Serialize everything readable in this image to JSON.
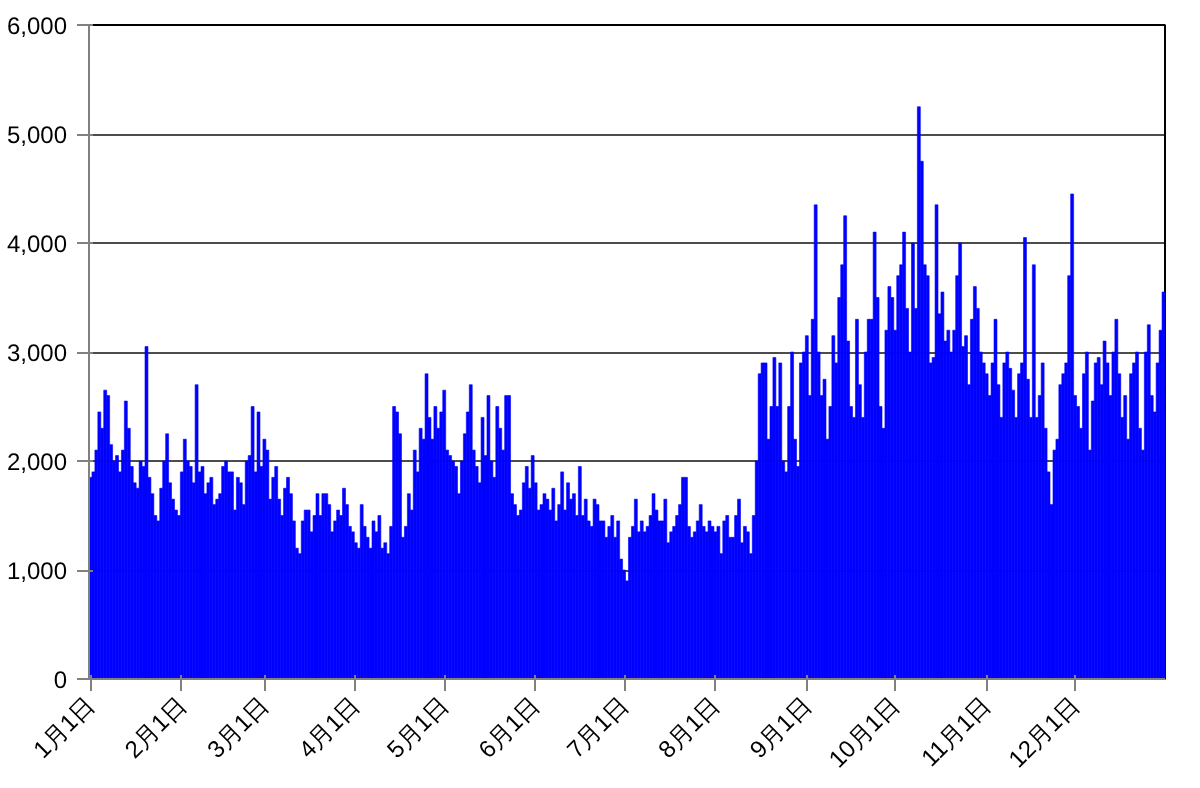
{
  "chart_data": {
    "type": "bar",
    "color": "#0000ff",
    "categories": [
      "1月1日",
      null,
      null,
      null,
      null,
      null,
      null,
      null,
      null,
      null,
      null,
      null,
      null,
      null,
      null,
      null,
      null,
      null,
      null,
      null,
      null,
      null,
      null,
      null,
      null,
      null,
      null,
      null,
      null,
      null,
      null,
      "2月1日",
      null,
      null,
      null,
      null,
      null,
      null,
      null,
      null,
      null,
      null,
      null,
      null,
      null,
      null,
      null,
      null,
      null,
      null,
      null,
      null,
      null,
      null,
      null,
      null,
      null,
      null,
      null,
      "3月1日",
      null,
      null,
      null,
      null,
      null,
      null,
      null,
      null,
      null,
      null,
      null,
      null,
      null,
      null,
      null,
      null,
      null,
      null,
      null,
      null,
      null,
      null,
      null,
      null,
      null,
      null,
      null,
      null,
      null,
      null,
      "4月1日",
      null,
      null,
      null,
      null,
      null,
      null,
      null,
      null,
      null,
      null,
      null,
      null,
      null,
      null,
      null,
      null,
      null,
      null,
      null,
      null,
      null,
      null,
      null,
      null,
      null,
      null,
      null,
      null,
      null,
      "5月1日",
      null,
      null,
      null,
      null,
      null,
      null,
      null,
      null,
      null,
      null,
      null,
      null,
      null,
      null,
      null,
      null,
      null,
      null,
      null,
      null,
      null,
      null,
      null,
      null,
      null,
      null,
      null,
      null,
      null,
      null,
      "6月1日",
      null,
      null,
      null,
      null,
      null,
      null,
      null,
      null,
      null,
      null,
      null,
      null,
      null,
      null,
      null,
      null,
      null,
      null,
      null,
      null,
      null,
      null,
      null,
      null,
      null,
      null,
      null,
      null,
      null,
      "7月1日",
      null,
      null,
      null,
      null,
      null,
      null,
      null,
      null,
      null,
      null,
      null,
      null,
      null,
      null,
      null,
      null,
      null,
      null,
      null,
      null,
      null,
      null,
      null,
      null,
      null,
      null,
      null,
      null,
      null,
      null,
      "8月1日",
      null,
      null,
      null,
      null,
      null,
      null,
      null,
      null,
      null,
      null,
      null,
      null,
      null,
      null,
      null,
      null,
      null,
      null,
      null,
      null,
      null,
      null,
      null,
      null,
      null,
      null,
      null,
      null,
      null,
      null,
      "9月1日",
      null,
      null,
      null,
      null,
      null,
      null,
      null,
      null,
      null,
      null,
      null,
      null,
      null,
      null,
      null,
      null,
      null,
      null,
      null,
      null,
      null,
      null,
      null,
      null,
      null,
      null,
      null,
      null,
      null,
      "10月1日",
      null,
      null,
      null,
      null,
      null,
      null,
      null,
      null,
      null,
      null,
      null,
      null,
      null,
      null,
      null,
      null,
      null,
      null,
      null,
      null,
      null,
      null,
      null,
      null,
      null,
      null,
      null,
      null,
      null,
      null,
      "11月1日",
      null,
      null,
      null,
      null,
      null,
      null,
      null,
      null,
      null,
      null,
      null,
      null,
      null,
      null,
      null,
      null,
      null,
      null,
      null,
      null,
      null,
      null,
      null,
      null,
      null,
      null,
      null,
      null,
      null,
      "12月1日",
      null,
      null,
      null,
      null,
      null,
      null,
      null,
      null,
      null,
      null,
      null,
      null,
      null,
      null,
      null,
      null,
      null,
      null,
      null,
      null,
      null,
      null,
      null,
      null,
      null,
      null,
      null,
      null,
      null,
      null
    ],
    "values": [
      1850,
      1900,
      2100,
      2450,
      2300,
      2650,
      2600,
      2150,
      2000,
      2050,
      1900,
      2100,
      2550,
      2300,
      1950,
      1800,
      1750,
      2000,
      1950,
      3050,
      1850,
      1700,
      1500,
      1450,
      1750,
      2000,
      2250,
      1800,
      1650,
      1550,
      1500,
      1900,
      2200,
      2000,
      1950,
      1800,
      2700,
      1900,
      1950,
      1700,
      1800,
      1850,
      1600,
      1650,
      1700,
      1950,
      2000,
      1900,
      1900,
      1550,
      1850,
      1800,
      1600,
      2000,
      2050,
      2500,
      1900,
      2450,
      1950,
      2200,
      2100,
      1650,
      1850,
      1950,
      1650,
      1500,
      1750,
      1850,
      1700,
      1450,
      1200,
      1150,
      1450,
      1550,
      1550,
      1350,
      1500,
      1700,
      1500,
      1700,
      1700,
      1600,
      1350,
      1450,
      1550,
      1500,
      1750,
      1600,
      1400,
      1350,
      1250,
      1200,
      1600,
      1400,
      1300,
      1200,
      1450,
      1350,
      1500,
      1200,
      1250,
      1150,
      1400,
      2500,
      2450,
      2250,
      1300,
      1400,
      1700,
      1550,
      2100,
      1900,
      2300,
      2200,
      2800,
      2400,
      2200,
      2500,
      2300,
      2450,
      2650,
      2100,
      2050,
      2000,
      1950,
      1700,
      2000,
      2250,
      2450,
      2700,
      2100,
      1950,
      1800,
      2400,
      2050,
      2600,
      2000,
      1850,
      2500,
      2300,
      2100,
      2600,
      2600,
      1700,
      1600,
      1500,
      1550,
      1800,
      1950,
      1750,
      2050,
      1800,
      1550,
      1600,
      1700,
      1650,
      1550,
      1750,
      1450,
      1600,
      1900,
      1550,
      1800,
      1650,
      1700,
      1500,
      1950,
      1500,
      1650,
      1450,
      1400,
      1650,
      1600,
      1450,
      1450,
      1300,
      1400,
      1500,
      1300,
      1450,
      1100,
      1000,
      900,
      1300,
      1400,
      1650,
      1350,
      1450,
      1350,
      1400,
      1500,
      1700,
      1550,
      1450,
      1450,
      1650,
      1250,
      1350,
      1400,
      1500,
      1600,
      1850,
      1850,
      1400,
      1300,
      1350,
      1450,
      1600,
      1400,
      1350,
      1450,
      1400,
      1350,
      1400,
      1150,
      1450,
      1500,
      1300,
      1300,
      1500,
      1650,
      1250,
      1400,
      1350,
      1150,
      1500,
      2000,
      2800,
      2900,
      2900,
      2200,
      2500,
      2950,
      2500,
      2900,
      2000,
      1900,
      2500,
      3000,
      2200,
      1950,
      2900,
      3000,
      3150,
      2600,
      3300,
      4350,
      3000,
      2600,
      2750,
      2200,
      2500,
      3150,
      2900,
      3500,
      3800,
      4250,
      3100,
      2500,
      2400,
      3300,
      2700,
      2400,
      3000,
      3300,
      3300,
      4100,
      3500,
      2500,
      2300,
      3200,
      3600,
      3500,
      3200,
      3700,
      3800,
      4100,
      3400,
      3000,
      4000,
      3400,
      5250,
      4750,
      3800,
      3700,
      2900,
      2950,
      4350,
      3350,
      3550,
      3100,
      3200,
      3000,
      3200,
      3700,
      4000,
      3050,
      3150,
      2700,
      3300,
      3600,
      3400,
      3000,
      2900,
      2800,
      2600,
      2900,
      3300,
      2700,
      2400,
      2900,
      3000,
      2850,
      2650,
      2400,
      2800,
      2900,
      4050,
      2750,
      2400,
      3800,
      2400,
      2600,
      2900,
      2300,
      1900,
      1600,
      2100,
      2200,
      2700,
      2800,
      2900,
      3700,
      4450,
      2600,
      2500,
      2300,
      2800,
      3000,
      2100,
      2550,
      2900,
      2950,
      2700,
      3100,
      2900,
      2600,
      3000,
      3300,
      2800,
      2400,
      2600,
      2200,
      2800,
      2900,
      3000,
      2300,
      2100,
      3000,
      3250,
      2600,
      2450,
      2900,
      3200,
      3550
    ],
    "ylim": [
      0,
      6000
    ],
    "yticks": [
      0,
      {
        "value": 1000,
        "label": "1,000"
      },
      {
        "value": 2000,
        "label": "2,000"
      },
      {
        "value": 3000,
        "label": "3,000"
      },
      {
        "value": 4000,
        "label": "4,000"
      },
      {
        "value": 5000,
        "label": "5,000"
      },
      {
        "value": 6000,
        "label": "6,000"
      }
    ],
    "grid": "y"
  }
}
